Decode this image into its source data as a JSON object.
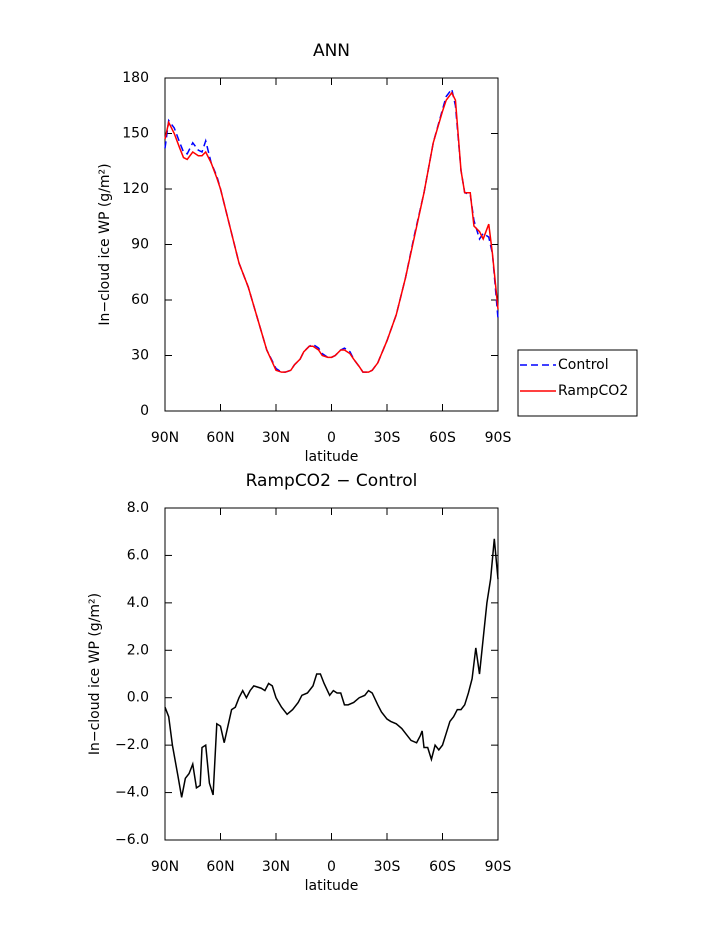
{
  "chart_data": [
    {
      "type": "line",
      "title": "ANN",
      "x_label": "latitude",
      "y_label": "In−cloud ice WP (g/m²)",
      "xlim": [
        90,
        -90
      ],
      "xticks": [
        {
          "value": 90,
          "label": "90N"
        },
        {
          "value": 60,
          "label": "60N"
        },
        {
          "value": 30,
          "label": "30N"
        },
        0,
        {
          "value": -30,
          "label": "30S"
        },
        {
          "value": -60,
          "label": "60S"
        },
        {
          "value": -90,
          "label": "90S"
        }
      ],
      "ylim": [
        0,
        180
      ],
      "yticks": [
        0,
        30,
        60,
        90,
        120,
        150,
        180
      ],
      "legend": "outside right",
      "x": [
        90,
        88,
        85,
        82,
        80,
        78,
        75,
        72,
        70,
        68,
        65,
        62,
        60,
        55,
        50,
        45,
        40,
        35,
        30,
        27,
        25,
        22,
        20,
        17,
        15,
        12,
        10,
        7,
        5,
        2,
        0,
        -2,
        -5,
        -7,
        -10,
        -12,
        -15,
        -17,
        -20,
        -22,
        -25,
        -30,
        -35,
        -40,
        -45,
        -50,
        -55,
        -60,
        -62,
        -65,
        -67,
        -70,
        -72,
        -75,
        -77,
        -80,
        -82,
        -85,
        -87,
        -90
      ],
      "series": [
        {
          "name": "Control",
          "color": "#0000ff",
          "style": "dashed",
          "values": [
            142,
            157,
            153,
            145,
            140,
            139,
            145,
            141,
            140,
            146,
            134,
            127,
            120,
            100,
            80,
            67,
            50,
            33,
            23,
            21,
            21,
            22,
            25,
            28,
            32,
            35,
            36,
            34,
            31,
            29,
            29,
            30,
            33,
            34,
            32,
            28,
            24,
            21,
            21,
            22,
            26,
            38,
            52,
            72,
            96,
            118,
            145,
            163,
            170,
            174,
            165,
            130,
            118,
            117,
            103,
            93,
            96,
            94,
            85,
            50
          ]
        },
        {
          "name": "RampCO2",
          "color": "#ff0000",
          "style": "solid",
          "values": [
            147,
            156,
            150,
            142,
            137,
            136,
            140,
            138,
            138,
            140,
            134,
            126,
            120,
            100,
            80,
            67,
            50,
            33,
            22,
            21,
            21,
            22,
            25,
            28,
            32,
            35,
            35,
            33,
            30,
            29,
            29,
            30,
            33,
            33,
            31,
            28,
            24,
            21,
            21,
            22,
            26,
            38,
            52,
            72,
            95,
            118,
            145,
            162,
            168,
            172,
            168,
            130,
            118,
            118,
            100,
            97,
            93,
            101,
            85,
            55
          ]
        }
      ]
    },
    {
      "type": "line",
      "title": "RampCO2 − Control",
      "x_label": "latitude",
      "y_label": "In−cloud ice WP (g/m²)",
      "xlim": [
        90,
        -90
      ],
      "xticks": [
        {
          "value": 90,
          "label": "90N"
        },
        {
          "value": 60,
          "label": "60N"
        },
        {
          "value": 30,
          "label": "30N"
        },
        0,
        {
          "value": -30,
          "label": "30S"
        },
        {
          "value": -60,
          "label": "60S"
        },
        {
          "value": -90,
          "label": "90S"
        }
      ],
      "ylim": [
        -6,
        8
      ],
      "yticks": [
        {
          "value": -6,
          "label": "−6.0"
        },
        {
          "value": -4,
          "label": "−4.0"
        },
        {
          "value": -2,
          "label": "−2.0"
        },
        {
          "value": 0,
          "label": "0.0"
        },
        {
          "value": 2,
          "label": "2.0"
        },
        {
          "value": 4,
          "label": "4.0"
        },
        {
          "value": 6,
          "label": "6.0"
        },
        {
          "value": 8,
          "label": "8.0"
        }
      ],
      "x": [
        90,
        88,
        86,
        83,
        81,
        79,
        77,
        75,
        73,
        71,
        70,
        68,
        66,
        64,
        62,
        60,
        58,
        56,
        54,
        52,
        50,
        48,
        46,
        44,
        42,
        38,
        36,
        34,
        32,
        30,
        27,
        24,
        21,
        18,
        16,
        13,
        10,
        8,
        6,
        4,
        1,
        -1,
        -3,
        -5,
        -7,
        -9,
        -12,
        -15,
        -18,
        -20,
        -22,
        -25,
        -27,
        -30,
        -32,
        -35,
        -38,
        -40,
        -43,
        -46,
        -48,
        -49,
        -50,
        -52,
        -54,
        -56,
        -58,
        -60,
        -62,
        -64,
        -66,
        -68,
        -70,
        -72,
        -74,
        -76,
        -78,
        -80,
        -82,
        -84,
        -86,
        -88,
        -90
      ],
      "series": [
        {
          "name": "RampCO2 − Control",
          "color": "#000000",
          "style": "solid",
          "values": [
            -0.4,
            -0.8,
            -2,
            -3.3,
            -4.2,
            -3.4,
            -3.2,
            -2.8,
            -3.8,
            -3.7,
            -2.1,
            -2.0,
            -3.6,
            -4.1,
            -1.1,
            -1.2,
            -1.9,
            -1.2,
            -0.5,
            -0.4,
            0.0,
            0.3,
            0.0,
            0.3,
            0.5,
            0.4,
            0.3,
            0.6,
            0.5,
            0.0,
            -0.4,
            -0.7,
            -0.5,
            -0.2,
            0.1,
            0.2,
            0.5,
            1.0,
            1.0,
            0.6,
            0.1,
            0.3,
            0.2,
            0.2,
            -0.3,
            -0.3,
            -0.2,
            0.0,
            0.1,
            0.3,
            0.2,
            -0.3,
            -0.6,
            -0.9,
            -1.0,
            -1.1,
            -1.3,
            -1.5,
            -1.8,
            -1.9,
            -1.6,
            -1.4,
            -2.1,
            -2.1,
            -2.6,
            -2.0,
            -2.2,
            -2.0,
            -1.5,
            -1.0,
            -0.8,
            -0.5,
            -0.5,
            -0.3,
            0.2,
            0.8,
            2.1,
            1.0,
            2.5,
            4.0,
            5.0,
            6.7,
            5.0
          ]
        }
      ]
    }
  ]
}
